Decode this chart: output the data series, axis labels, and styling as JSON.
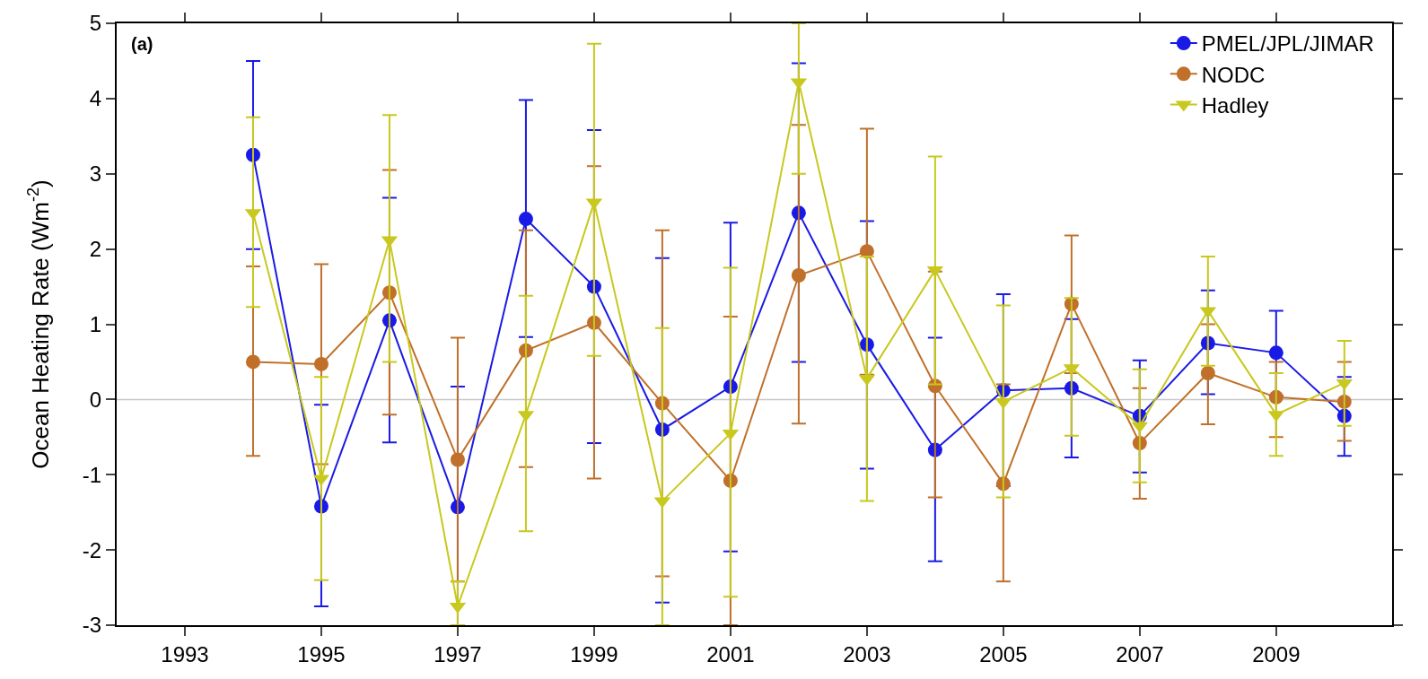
{
  "chart_data": {
    "type": "line",
    "x": [
      1994,
      1995,
      1996,
      1997,
      1998,
      1999,
      2000,
      2001,
      2002,
      2003,
      2004,
      2005,
      2006,
      2007,
      2008,
      2009,
      2010
    ],
    "ylabel": "Ocean Heating Rate (Wm$^{-2}$)",
    "annotations": [
      "(a)"
    ],
    "series": [
      {
        "name": "PMEL/JPL/JIMAR",
        "color": "#1a1ae6",
        "marker": "circle",
        "values": [
          3.25,
          -1.42,
          1.05,
          -1.43,
          2.4,
          1.5,
          -0.4,
          0.17,
          2.48,
          0.73,
          -0.67,
          0.12,
          0.15,
          -0.22,
          0.75,
          0.62,
          -0.22
        ],
        "errors": [
          [
            2.0,
            4.5
          ],
          [
            -2.75,
            -0.07
          ],
          [
            -0.57,
            2.68
          ],
          [
            -3.0,
            0.17
          ],
          [
            0.83,
            3.98
          ],
          [
            -0.58,
            3.58
          ],
          [
            -2.7,
            1.88
          ],
          [
            -2.02,
            2.35
          ],
          [
            0.5,
            4.47
          ],
          [
            -0.92,
            2.37
          ],
          [
            -2.15,
            0.82
          ],
          [
            -1.15,
            1.4
          ],
          [
            -0.77,
            1.07
          ],
          [
            -0.97,
            0.52
          ],
          [
            0.07,
            1.45
          ],
          [
            0.05,
            1.18
          ],
          [
            -0.75,
            0.3
          ]
        ]
      },
      {
        "name": "NODC",
        "color": "#c0702a",
        "marker": "circle",
        "values": [
          0.5,
          0.47,
          1.42,
          -0.8,
          0.65,
          1.02,
          -0.05,
          -1.08,
          1.65,
          1.97,
          0.18,
          -1.12,
          1.27,
          -0.58,
          0.35,
          0.03,
          -0.03
        ],
        "errors": [
          [
            -0.75,
            1.77
          ],
          [
            -0.86,
            1.8
          ],
          [
            -0.2,
            3.05
          ],
          [
            -2.42,
            0.82
          ],
          [
            -0.9,
            2.25
          ],
          [
            -1.05,
            3.1
          ],
          [
            -2.35,
            2.25
          ],
          [
            -3.0,
            1.1
          ],
          [
            -0.32,
            3.65
          ],
          [
            0.33,
            3.6
          ],
          [
            -1.3,
            1.7
          ],
          [
            -2.42,
            0.2
          ],
          [
            0.35,
            2.18
          ],
          [
            -1.32,
            0.15
          ],
          [
            -0.33,
            1.0
          ],
          [
            -0.5,
            0.5
          ],
          [
            -0.55,
            0.5
          ]
        ]
      },
      {
        "name": "Hadley",
        "color": "#c8c81e",
        "marker": "triangle-down",
        "values": [
          2.48,
          -1.05,
          2.12,
          -2.75,
          -0.2,
          2.62,
          -1.35,
          -0.45,
          4.22,
          0.28,
          1.72,
          -0.03,
          0.42,
          -0.35,
          1.18,
          -0.2,
          0.22
        ],
        "errors": [
          [
            1.23,
            3.75
          ],
          [
            -2.4,
            0.3
          ],
          [
            0.5,
            3.78
          ],
          [
            -3.0,
            -2.42
          ],
          [
            -1.75,
            1.38
          ],
          [
            0.58,
            4.73
          ],
          [
            -3.0,
            0.95
          ],
          [
            -2.62,
            1.75
          ],
          [
            3.0,
            5.0
          ],
          [
            -1.35,
            1.9
          ],
          [
            0.2,
            3.23
          ],
          [
            -1.3,
            1.25
          ],
          [
            -0.48,
            1.35
          ],
          [
            -1.1,
            0.4
          ],
          [
            0.45,
            1.9
          ],
          [
            -0.75,
            0.35
          ],
          [
            -0.35,
            0.78
          ]
        ]
      }
    ],
    "xlim": [
      1992,
      2010.7
    ],
    "xticks": [
      1993,
      1995,
      1997,
      1999,
      2001,
      2003,
      2005,
      2007,
      2009
    ],
    "ylim": [
      -3,
      5
    ],
    "yticks": [
      -3,
      -2,
      -1,
      0,
      1,
      2,
      3,
      4,
      5
    ],
    "ref_lines": [
      {
        "axis": "y",
        "value": 0,
        "color": "#c8c8c8"
      }
    ],
    "grid": false,
    "legend": "top right"
  }
}
